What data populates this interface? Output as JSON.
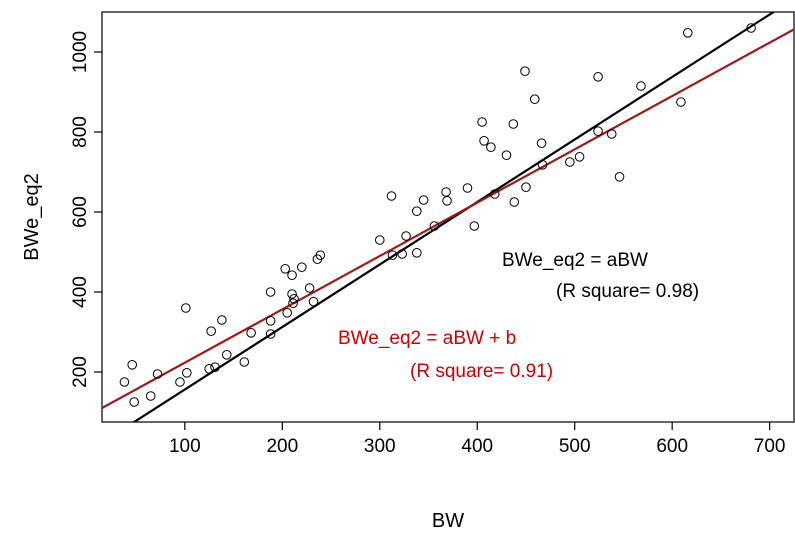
{
  "chart_data": {
    "type": "scatter",
    "title": "",
    "xlabel": "BW",
    "ylabel": "BWe_eq2",
    "xlim": [
      15,
      725
    ],
    "ylim": [
      75,
      1100
    ],
    "x_ticks": [
      100,
      200,
      300,
      400,
      500,
      600,
      700
    ],
    "y_ticks": [
      200,
      400,
      600,
      800,
      1000
    ],
    "grid": false,
    "legend": "none",
    "point_style": "open-circle",
    "points": [
      [
        38,
        175
      ],
      [
        46,
        218
      ],
      [
        48,
        125
      ],
      [
        65,
        140
      ],
      [
        72,
        195
      ],
      [
        95,
        175
      ],
      [
        101,
        360
      ],
      [
        102,
        198
      ],
      [
        125,
        208
      ],
      [
        127,
        302
      ],
      [
        131,
        212
      ],
      [
        138,
        330
      ],
      [
        143,
        243
      ],
      [
        161,
        225
      ],
      [
        168,
        298
      ],
      [
        188,
        400
      ],
      [
        188,
        328
      ],
      [
        188,
        295
      ],
      [
        203,
        458
      ],
      [
        205,
        348
      ],
      [
        210,
        395
      ],
      [
        210,
        442
      ],
      [
        211,
        372
      ],
      [
        212,
        383
      ],
      [
        220,
        462
      ],
      [
        228,
        410
      ],
      [
        232,
        376
      ],
      [
        236,
        482
      ],
      [
        239,
        492
      ],
      [
        300,
        530
      ],
      [
        312,
        640
      ],
      [
        313,
        492
      ],
      [
        323,
        495
      ],
      [
        327,
        540
      ],
      [
        338,
        498
      ],
      [
        338,
        602
      ],
      [
        345,
        630
      ],
      [
        356,
        565
      ],
      [
        368,
        650
      ],
      [
        369,
        628
      ],
      [
        390,
        660
      ],
      [
        397,
        565
      ],
      [
        405,
        825
      ],
      [
        407,
        778
      ],
      [
        414,
        762
      ],
      [
        418,
        645
      ],
      [
        430,
        742
      ],
      [
        437,
        820
      ],
      [
        438,
        625
      ],
      [
        449,
        952
      ],
      [
        450,
        662
      ],
      [
        459,
        882
      ],
      [
        466,
        772
      ],
      [
        467,
        718
      ],
      [
        495,
        725
      ],
      [
        505,
        738
      ],
      [
        524,
        938
      ],
      [
        524,
        802
      ],
      [
        538,
        795
      ],
      [
        546,
        688
      ],
      [
        568,
        915
      ],
      [
        609,
        875
      ],
      [
        616,
        1048
      ],
      [
        681,
        1060
      ]
    ],
    "fits": [
      {
        "label": "BWe_eq2 = aBW",
        "r2_label": "(R square= 0.98)",
        "slope": 1.5625,
        "intercept": 0,
        "color": "#000000"
      },
      {
        "label": "BWe_eq2 = aBW + b",
        "r2_label": "(R square= 0.91)",
        "slope": 1.3333,
        "intercept": 90,
        "color": "#9b1b1b"
      }
    ]
  }
}
